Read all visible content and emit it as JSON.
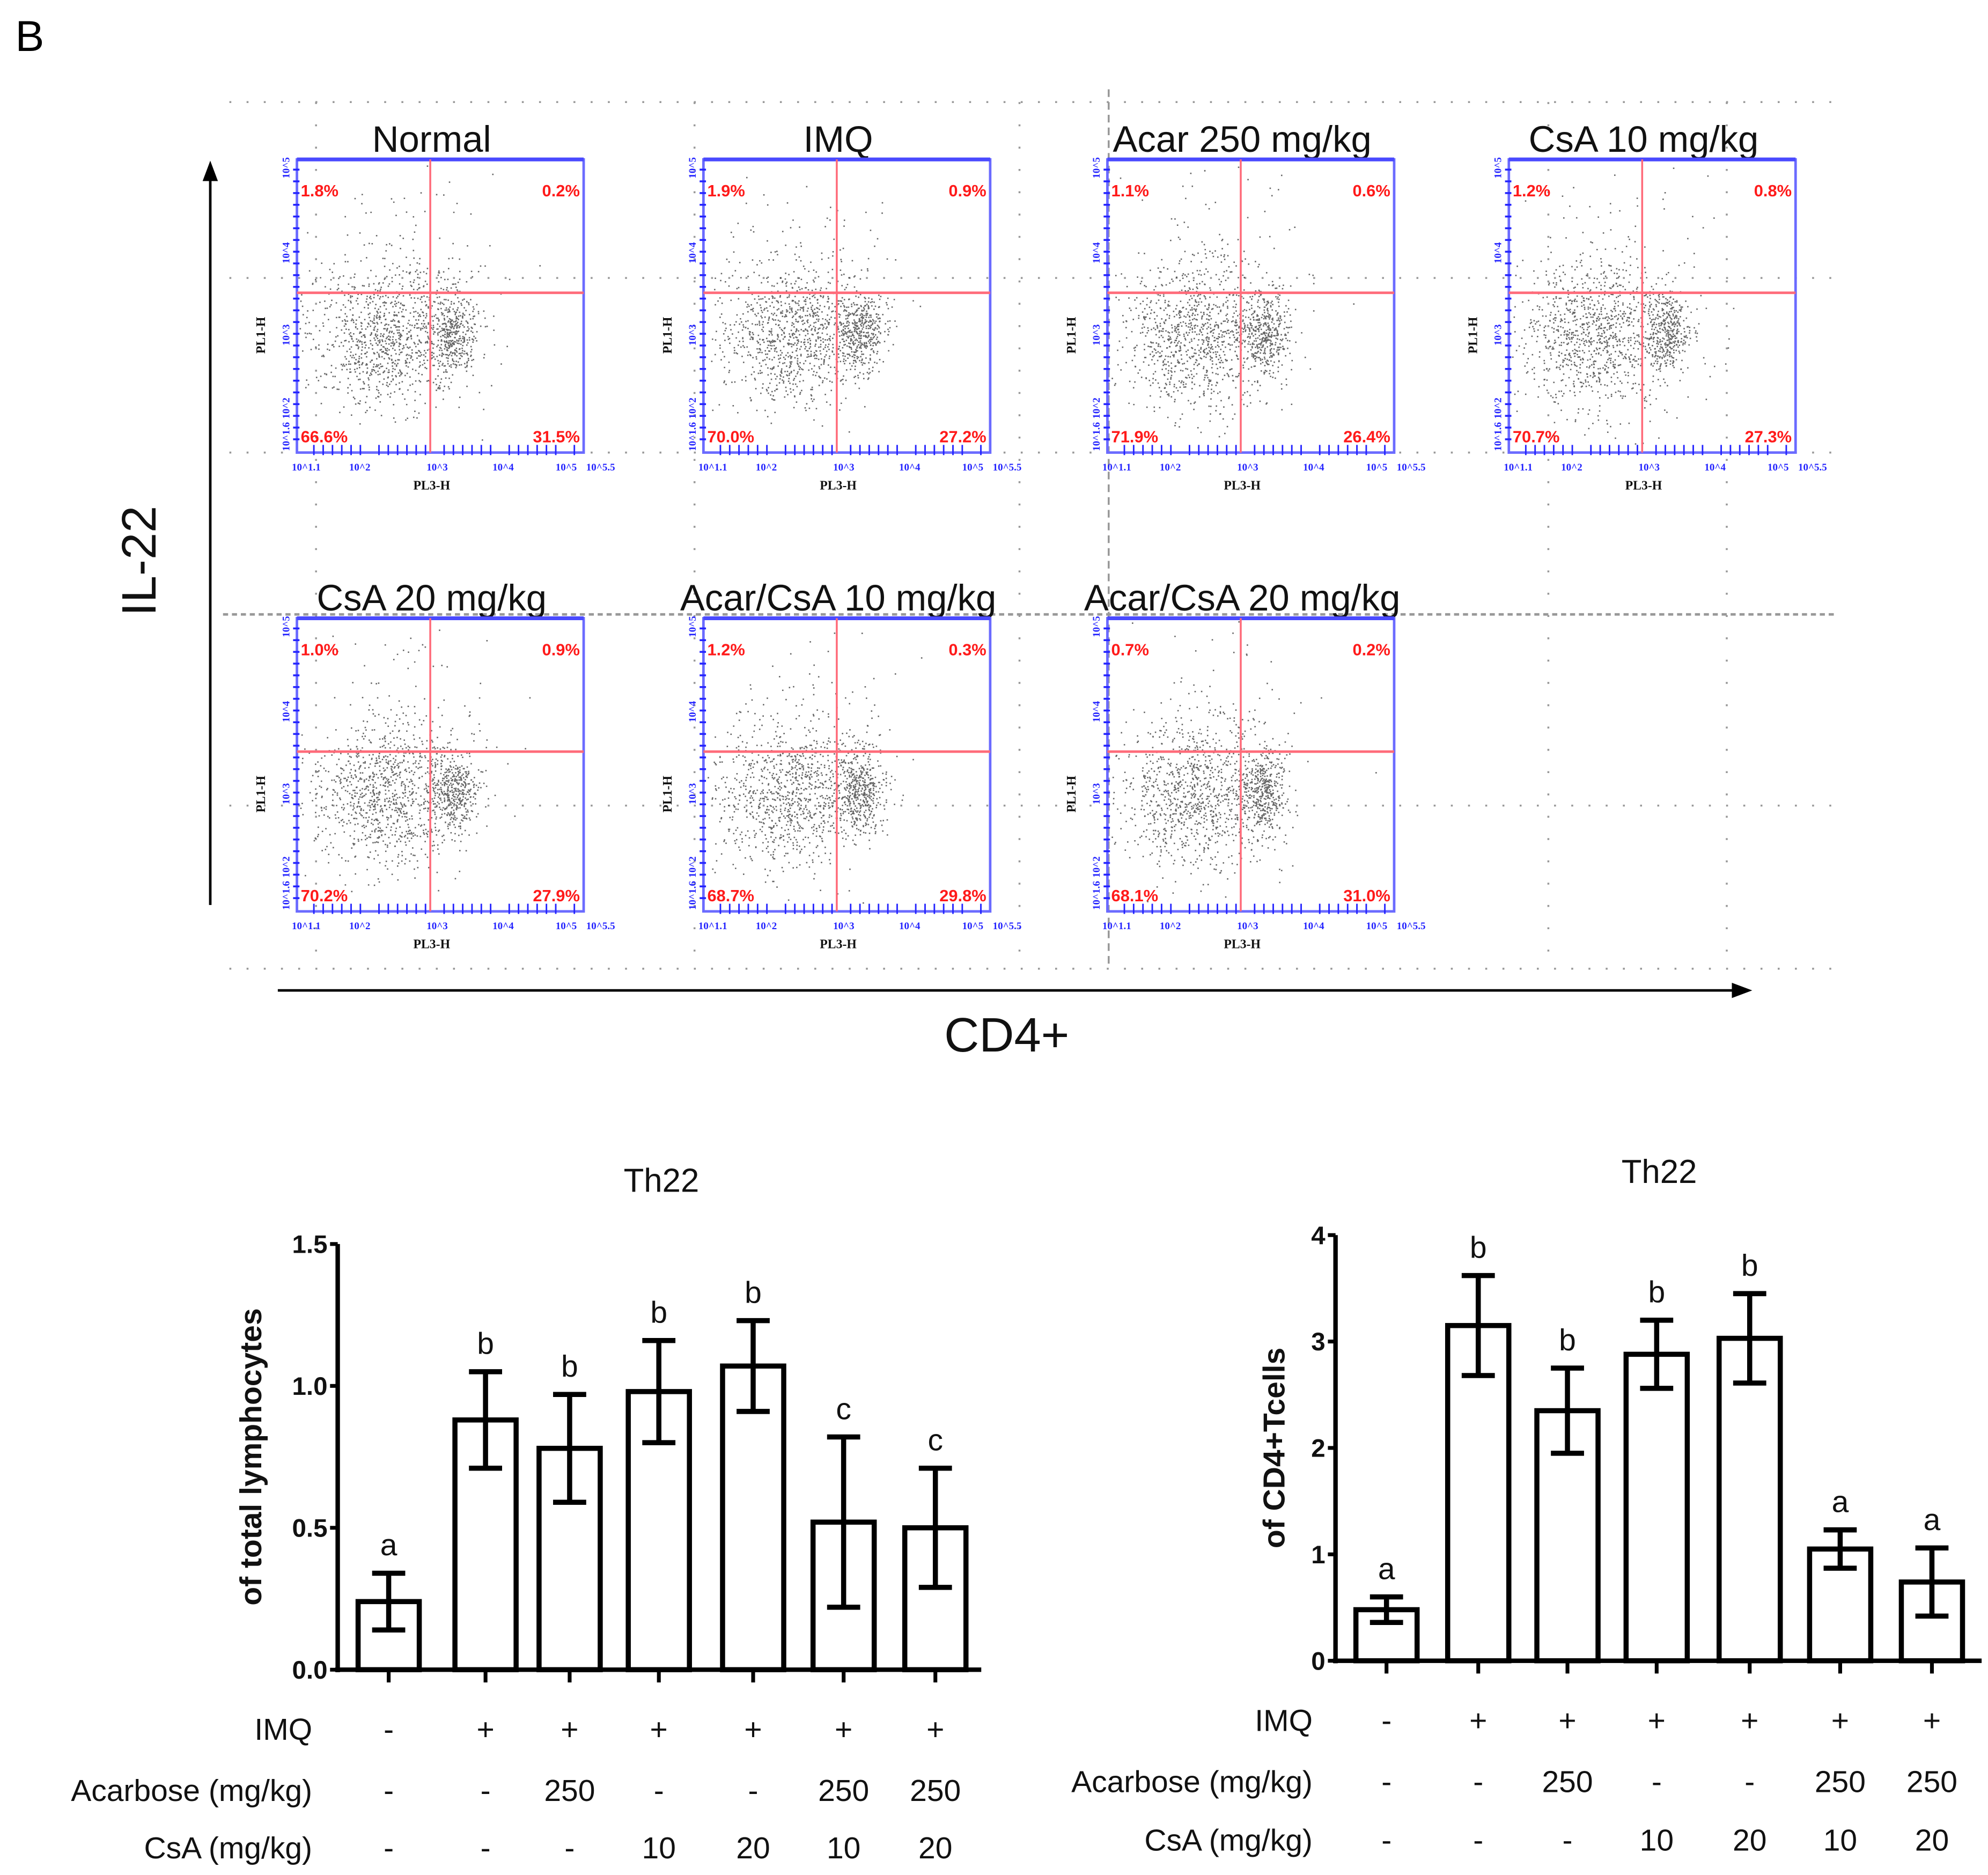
{
  "panel_label": "B",
  "flow": {
    "y_axis_title": "IL-22",
    "x_axis_title": "CD4+",
    "plot_y_label": "PL1-H",
    "plot_x_label": "PL3-H",
    "x_tick_labels": [
      "10^1.1",
      "10^2",
      "10^3",
      "10^4",
      "10^5",
      "10^5.5"
    ],
    "y_tick_labels": [
      "10^1.6",
      "10^2",
      "10^3",
      "10^4",
      "10^5"
    ],
    "plots": [
      {
        "title": "Normal",
        "upper_left": "1.8%",
        "upper_right": "0.2%",
        "lower_left": "66.6%",
        "lower_right": "31.5%"
      },
      {
        "title": "IMQ",
        "upper_left": "1.9%",
        "upper_right": "0.9%",
        "lower_left": "70.0%",
        "lower_right": "27.2%"
      },
      {
        "title": "Acar 250 mg/kg",
        "upper_left": "1.1%",
        "upper_right": "0.6%",
        "lower_left": "71.9%",
        "lower_right": "26.4%"
      },
      {
        "title": "CsA 10 mg/kg",
        "upper_left": "1.2%",
        "upper_right": "0.8%",
        "lower_left": "70.7%",
        "lower_right": "27.3%"
      },
      {
        "title": "CsA 20 mg/kg",
        "upper_left": "1.0%",
        "upper_right": "0.9%",
        "lower_left": "70.2%",
        "lower_right": "27.9%"
      },
      {
        "title": "Acar/CsA 10 mg/kg",
        "upper_left": "1.2%",
        "upper_right": "0.3%",
        "lower_left": "68.7%",
        "lower_right": "29.8%"
      },
      {
        "title": "Acar/CsA 20 mg/kg",
        "upper_left": "0.7%",
        "upper_right": "0.2%",
        "lower_left": "68.1%",
        "lower_right": "31.0%"
      }
    ]
  },
  "treatment_table": {
    "row_labels": [
      "IMQ",
      "Acarbose (mg/kg)",
      "CsA (mg/kg)"
    ],
    "imq": [
      "-",
      "+",
      "+",
      "+",
      "+",
      "+",
      "+"
    ],
    "acarbose": [
      "-",
      "-",
      "250",
      "-",
      "-",
      "250",
      "250"
    ],
    "csa": [
      "-",
      "-",
      "-",
      "10",
      "20",
      "10",
      "20"
    ]
  },
  "chart_data": [
    {
      "type": "bar",
      "title": "Th22",
      "ylabel": "of total lymphocytes",
      "xlabel": "",
      "ylim": [
        0,
        1.5
      ],
      "yticks": [
        "0.0",
        "0.5",
        "1.0",
        "1.5"
      ],
      "ytick_values": [
        0,
        0.5,
        1.0,
        1.5
      ],
      "categories": [
        "Normal",
        "IMQ",
        "IMQ+Acar 250",
        "IMQ+CsA 10",
        "IMQ+CsA 20",
        "IMQ+Acar 250/CsA 10",
        "IMQ+Acar 250/CsA 20"
      ],
      "values": [
        0.24,
        0.88,
        0.78,
        0.98,
        1.07,
        0.52,
        0.5
      ],
      "error": [
        0.1,
        0.17,
        0.19,
        0.18,
        0.16,
        0.3,
        0.21
      ],
      "significance_letters": [
        "a",
        "b",
        "b",
        "b",
        "b",
        "c",
        "c"
      ]
    },
    {
      "type": "bar",
      "title": "Th22",
      "ylabel": "of CD4+Tcells",
      "xlabel": "",
      "ylim": [
        0,
        4
      ],
      "yticks": [
        "0",
        "1",
        "2",
        "3",
        "4"
      ],
      "ytick_values": [
        0,
        1,
        2,
        3,
        4
      ],
      "categories": [
        "Normal",
        "IMQ",
        "IMQ+Acar 250",
        "IMQ+CsA 10",
        "IMQ+CsA 20",
        "IMQ+Acar 250/CsA 10",
        "IMQ+Acar 250/CsA 20"
      ],
      "values": [
        0.48,
        3.15,
        2.35,
        2.88,
        3.03,
        1.05,
        0.74
      ],
      "error": [
        0.12,
        0.47,
        0.4,
        0.32,
        0.42,
        0.18,
        0.32
      ],
      "significance_letters": [
        "a",
        "b",
        "b",
        "b",
        "b",
        "a",
        "a"
      ]
    }
  ]
}
